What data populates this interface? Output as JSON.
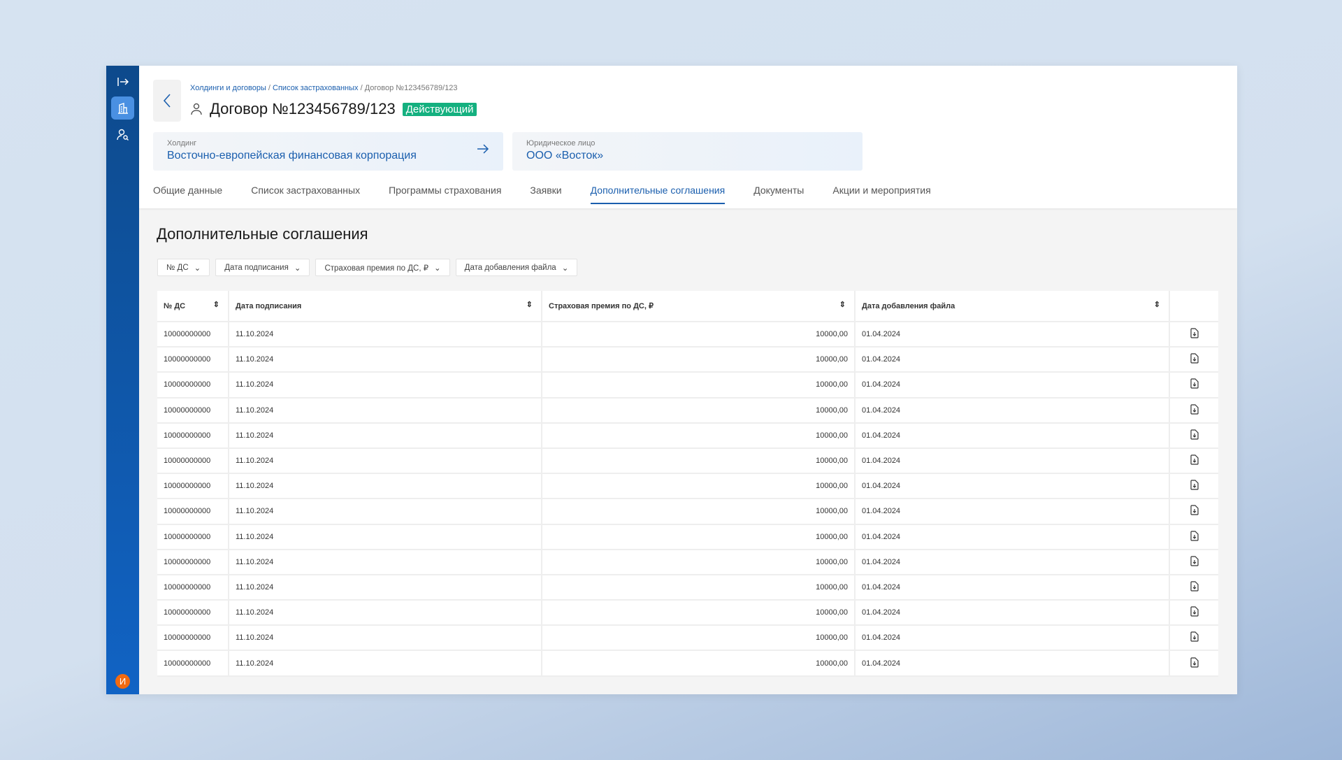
{
  "sidebar": {
    "items": [
      {
        "icon": "collapse-icon"
      },
      {
        "icon": "building-icon",
        "active": true
      },
      {
        "icon": "user-search-icon"
      }
    ],
    "avatar": "И"
  },
  "breadcrumb": {
    "items": [
      "Холдинги и договоры",
      "Список застрахованных"
    ],
    "current": "Договор №123456789/123"
  },
  "header": {
    "title": "Договор №123456789/123",
    "status": "Действующий",
    "status_color": "#14b07f"
  },
  "holding": {
    "label": "Холдинг",
    "value": "Восточно-европейская финансовая корпорация"
  },
  "legal_entity": {
    "label": "Юридическое лицо",
    "value": "ООО «Восток»"
  },
  "tabs": [
    "Общие данные",
    "Список застрахованных",
    "Программы страхования",
    "Заявки",
    "Дополнительные соглашения",
    "Документы",
    "Акции и мероприятия"
  ],
  "active_tab": "Дополнительные соглашения",
  "section_title": "Дополнительные соглашения",
  "filters": [
    "№ ДС",
    "Дата подписания",
    "Страховая премия по ДС, ₽",
    "Дата добавления файла"
  ],
  "table": {
    "columns": [
      "№ ДС",
      "Дата подписания",
      "Страховая премия по ДС, ₽",
      "Дата добавления файла"
    ],
    "rows": [
      [
        "10000000000",
        "11.10.2024",
        "10000,00",
        "01.04.2024"
      ],
      [
        "10000000000",
        "11.10.2024",
        "10000,00",
        "01.04.2024"
      ],
      [
        "10000000000",
        "11.10.2024",
        "10000,00",
        "01.04.2024"
      ],
      [
        "10000000000",
        "11.10.2024",
        "10000,00",
        "01.04.2024"
      ],
      [
        "10000000000",
        "11.10.2024",
        "10000,00",
        "01.04.2024"
      ],
      [
        "10000000000",
        "11.10.2024",
        "10000,00",
        "01.04.2024"
      ],
      [
        "10000000000",
        "11.10.2024",
        "10000,00",
        "01.04.2024"
      ],
      [
        "10000000000",
        "11.10.2024",
        "10000,00",
        "01.04.2024"
      ],
      [
        "10000000000",
        "11.10.2024",
        "10000,00",
        "01.04.2024"
      ],
      [
        "10000000000",
        "11.10.2024",
        "10000,00",
        "01.04.2024"
      ],
      [
        "10000000000",
        "11.10.2024",
        "10000,00",
        "01.04.2024"
      ],
      [
        "10000000000",
        "11.10.2024",
        "10000,00",
        "01.04.2024"
      ],
      [
        "10000000000",
        "11.10.2024",
        "10000,00",
        "01.04.2024"
      ],
      [
        "10000000000",
        "11.10.2024",
        "10000,00",
        "01.04.2024"
      ]
    ]
  }
}
